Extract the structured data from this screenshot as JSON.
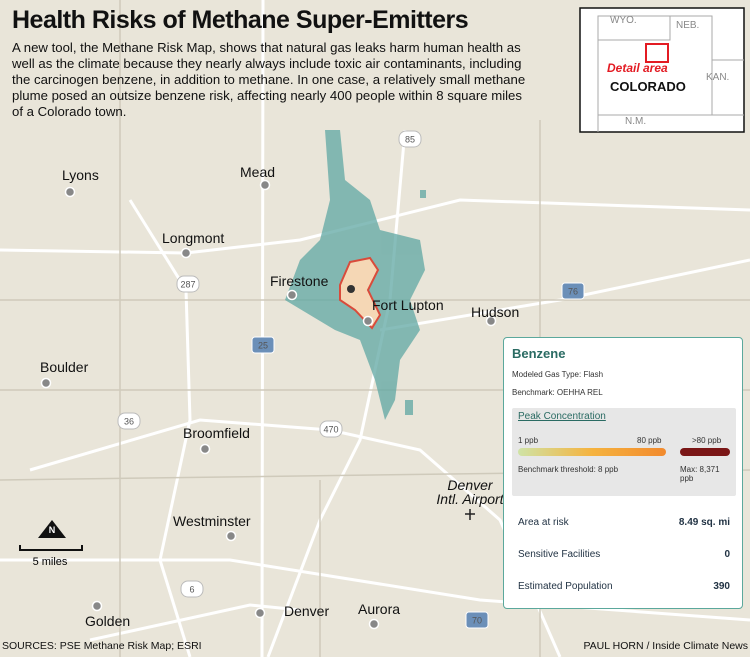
{
  "header": {
    "title": "Health Risks of Methane Super-Emitters",
    "description": [
      "A new tool, the Methane Risk Map, shows that natural gas leaks harm human health as",
      "well as the climate because they nearly always include toxic air contaminants, including",
      "the carcinogen benzene, in addition to methane. In one case, a relatively small methane",
      "plume posed an outsize benzene risk, affecting nearly 400 people within 8 square miles",
      "of a Colorado town."
    ]
  },
  "inset": {
    "states": [
      "WYO.",
      "NEB.",
      "KAN.",
      "N.M."
    ],
    "detail": "Detail area",
    "state": "COLORADO"
  },
  "towns": [
    "Lyons",
    "Mead",
    "Longmont",
    "Firestone",
    "Fort Lupton",
    "Hudson",
    "Boulder",
    "Broomfield",
    "Westminster",
    "Denver",
    "Aurora",
    "Golden"
  ],
  "airport": [
    "Denver",
    "Intl. Airport"
  ],
  "highways": [
    "85",
    "287",
    "76",
    "25",
    "36",
    "470",
    "6",
    "70"
  ],
  "north": "N",
  "scale": "5 miles",
  "panel": {
    "title": "Benzene",
    "gas_type": "Modeled Gas Type: Flash",
    "benchmark": "Benchmark: OEHHA REL",
    "peak": "Peak Concentration",
    "scale_min": "1 ppb",
    "scale_mid": "80 ppb",
    "scale_over": ">80 ppb",
    "threshold": "Benchmark threshold: 8 ppb",
    "max": "Max: 8,371 ppb",
    "stats": [
      {
        "label": "Area at risk",
        "value": "8.49 sq. mi"
      },
      {
        "label": "Sensitive Facilities",
        "value": "0"
      },
      {
        "label": "Estimated Population",
        "value": "390"
      }
    ]
  },
  "footer": {
    "sources": "SOURCES: PSE Methane Risk Map; ESRI",
    "credit": "PAUL HORN / Inside Climate News"
  }
}
